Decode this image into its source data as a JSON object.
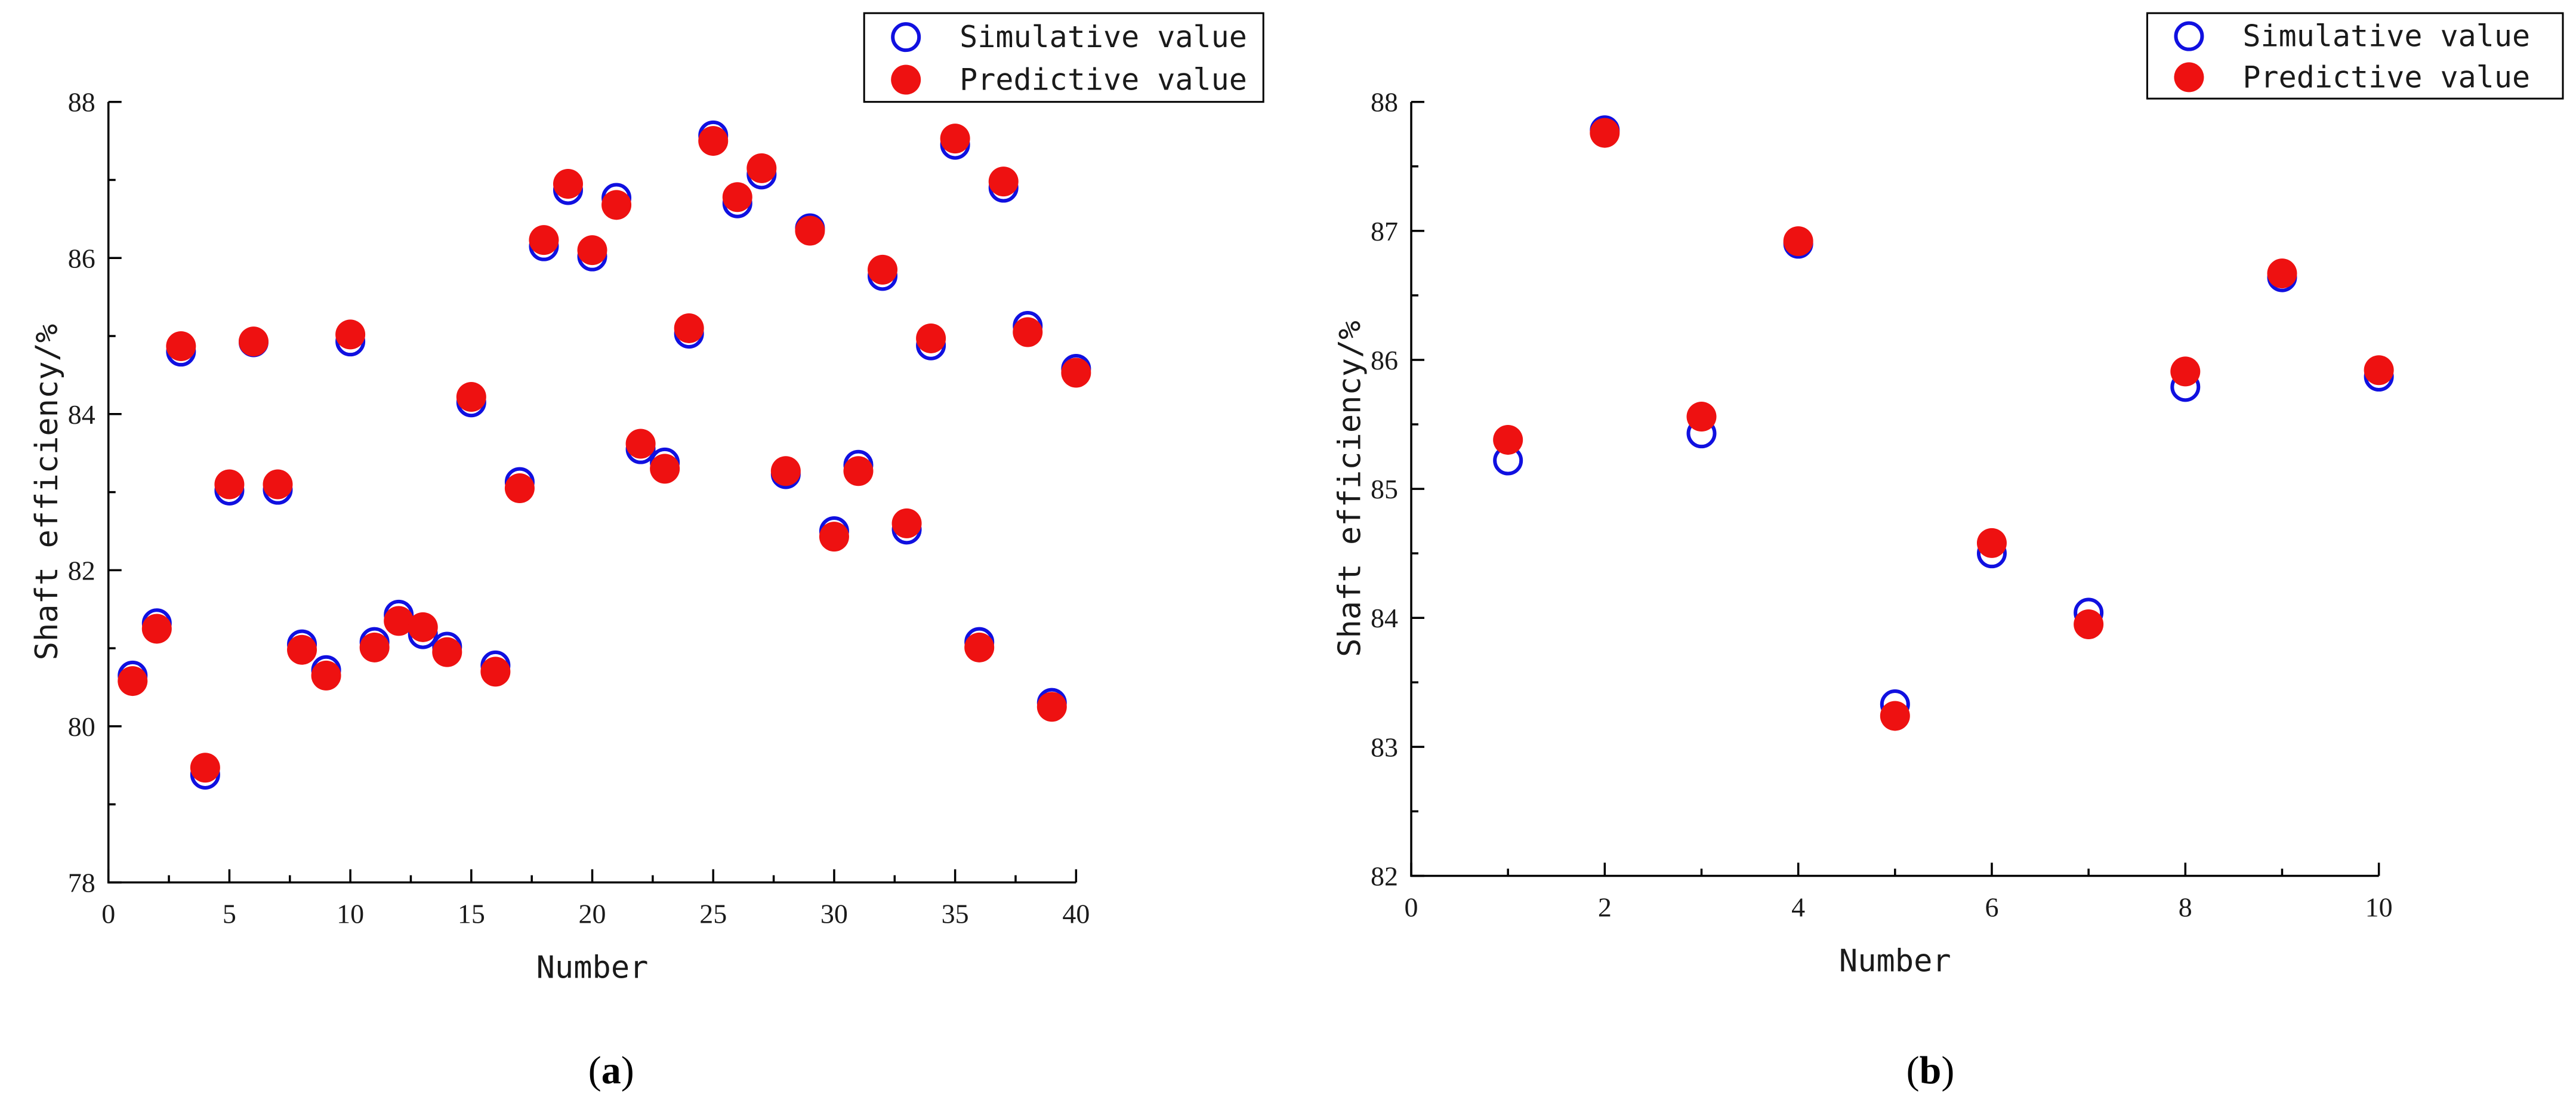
{
  "chart_data": [
    {
      "id": "a",
      "type": "scatter",
      "caption": "a",
      "xlabel": "Number",
      "ylabel": "Shaft efficiency/%",
      "xlim": [
        0,
        40
      ],
      "ylim": [
        78,
        88
      ],
      "xticks": [
        0,
        5,
        10,
        15,
        20,
        25,
        30,
        35,
        40
      ],
      "yticks": [
        78,
        80,
        82,
        84,
        86,
        88
      ],
      "legend": "top-right",
      "series": [
        {
          "name": "Simulative value",
          "marker": "hollow-circle",
          "color": "#1010e0",
          "x": [
            1,
            2,
            3,
            4,
            5,
            6,
            7,
            8,
            9,
            10,
            11,
            12,
            13,
            14,
            15,
            16,
            17,
            18,
            19,
            20,
            21,
            22,
            23,
            24,
            25,
            26,
            27,
            28,
            29,
            30,
            31,
            32,
            33,
            34,
            35,
            36,
            37,
            38,
            39,
            40
          ],
          "values": [
            80.65,
            81.32,
            84.8,
            79.38,
            83.02,
            84.92,
            83.03,
            81.05,
            80.72,
            84.93,
            81.08,
            81.43,
            81.18,
            81.02,
            84.15,
            80.78,
            83.13,
            86.15,
            86.87,
            86.02,
            86.77,
            83.55,
            83.38,
            85.03,
            87.57,
            86.7,
            87.07,
            83.23,
            86.38,
            82.5,
            83.35,
            85.77,
            82.52,
            84.88,
            87.45,
            81.08,
            86.9,
            85.13,
            80.3,
            84.58
          ]
        },
        {
          "name": "Predictive value",
          "marker": "filled-circle",
          "color": "#ee1111",
          "x": [
            1,
            2,
            3,
            4,
            5,
            6,
            7,
            8,
            9,
            10,
            11,
            12,
            13,
            14,
            15,
            16,
            17,
            18,
            19,
            20,
            21,
            22,
            23,
            24,
            25,
            26,
            27,
            28,
            29,
            30,
            31,
            32,
            33,
            34,
            35,
            36,
            37,
            38,
            39,
            40
          ],
          "values": [
            80.58,
            81.25,
            84.87,
            79.47,
            83.1,
            84.93,
            83.1,
            80.98,
            80.65,
            85.02,
            81.01,
            81.35,
            81.27,
            80.95,
            84.22,
            80.7,
            83.05,
            86.23,
            86.95,
            86.1,
            86.68,
            83.62,
            83.3,
            85.1,
            87.5,
            86.78,
            87.15,
            83.27,
            86.35,
            82.43,
            83.27,
            85.85,
            82.6,
            84.97,
            87.53,
            81.01,
            86.98,
            85.05,
            80.25,
            84.53
          ]
        }
      ]
    },
    {
      "id": "b",
      "type": "scatter",
      "caption": "b",
      "xlabel": "Number",
      "ylabel": "Shaft efficiency/%",
      "xlim": [
        0,
        10
      ],
      "ylim": [
        82,
        88
      ],
      "xticks": [
        0,
        2,
        4,
        6,
        8,
        10
      ],
      "yticks": [
        82,
        83,
        84,
        85,
        86,
        87,
        88
      ],
      "legend": "top-right",
      "series": [
        {
          "name": "Simulative value",
          "marker": "hollow-circle",
          "color": "#1010e0",
          "x": [
            1,
            2,
            3,
            4,
            5,
            6,
            7,
            8,
            9,
            10
          ],
          "values": [
            85.22,
            87.78,
            85.43,
            86.9,
            83.33,
            84.5,
            84.04,
            85.79,
            86.64,
            85.87
          ]
        },
        {
          "name": "Predictive value",
          "marker": "filled-circle",
          "color": "#ee1111",
          "x": [
            1,
            2,
            3,
            4,
            5,
            6,
            7,
            8,
            9,
            10
          ],
          "values": [
            85.38,
            87.76,
            85.56,
            86.92,
            83.24,
            84.58,
            83.95,
            85.91,
            86.67,
            85.92
          ]
        }
      ]
    }
  ]
}
